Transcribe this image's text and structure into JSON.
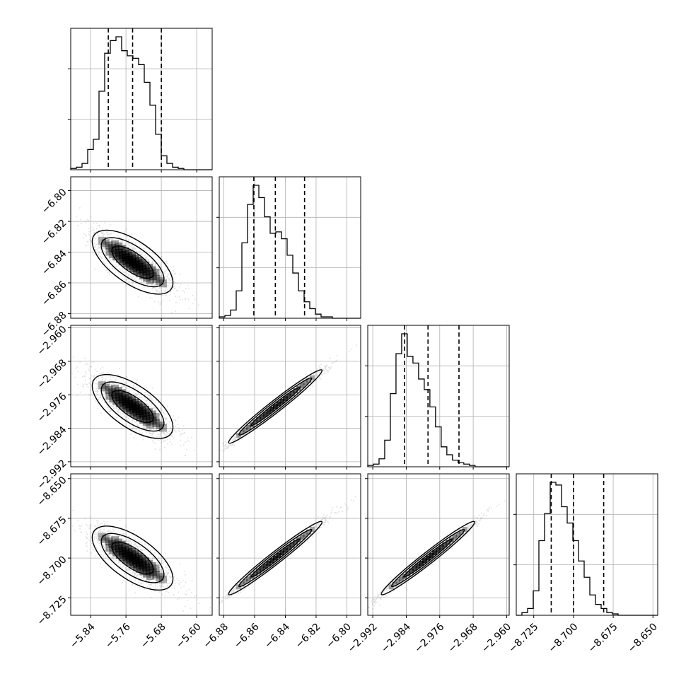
{
  "chart_data": {
    "type": "corner",
    "parameters": [
      {
        "range": [
          -5.885,
          -5.565
        ],
        "ticks": [
          -5.84,
          -5.76,
          -5.68,
          -5.6
        ],
        "tick_labels": [
          "−5.84",
          "−5.76",
          "−5.68",
          "−5.60"
        ],
        "quantiles": [
          -5.8,
          -5.745,
          -5.68
        ],
        "hist_edges_start": -5.885,
        "hist_bin_width": 0.0128,
        "hist_counts": [
          1,
          2,
          5,
          16,
          24,
          62,
          92,
          102,
          105,
          94,
          90,
          88,
          83,
          69,
          51,
          28,
          11,
          5,
          2,
          1,
          0,
          0,
          0,
          0,
          0
        ]
      },
      {
        "range": [
          -6.883,
          -6.791
        ],
        "ticks": [
          -6.88,
          -6.86,
          -6.84,
          -6.82,
          -6.8
        ],
        "tick_labels": [
          "−6.88",
          "−6.86",
          "−6.84",
          "−6.82",
          "−6.80"
        ],
        "quantiles": [
          -6.8605,
          -6.8465,
          -6.8275
        ],
        "hist_edges_start": -6.883,
        "hist_bin_width": 0.00368,
        "hist_counts": [
          1,
          2,
          6,
          20,
          55,
          83,
          97,
          88,
          74,
          62,
          63,
          58,
          46,
          33,
          20,
          12,
          7,
          3,
          1,
          1,
          0,
          0,
          0,
          0,
          0
        ]
      },
      {
        "range": [
          -2.9932,
          -2.9594
        ],
        "ticks": [
          -2.992,
          -2.984,
          -2.976,
          -2.968,
          -2.96
        ],
        "tick_labels": [
          "−2.992",
          "−2.984",
          "−2.976",
          "−2.968",
          "−2.960"
        ],
        "quantiles": [
          -2.9844,
          -2.9788,
          -2.9714
        ],
        "hist_edges_start": -2.9932,
        "hist_bin_width": 0.00135,
        "hist_counts": [
          1,
          2,
          6,
          20,
          55,
          85,
          100,
          83,
          78,
          66,
          58,
          45,
          30,
          15,
          9,
          5,
          3,
          2,
          1,
          0,
          0,
          0,
          0,
          0,
          0
        ]
      },
      {
        "range": [
          -8.736,
          -8.647
        ],
        "ticks": [
          -8.725,
          -8.7,
          -8.675,
          -8.65
        ],
        "tick_labels": [
          "−8.725",
          "−8.700",
          "−8.675",
          "−8.650"
        ],
        "quantiles": [
          -8.714,
          -8.7,
          -8.681
        ],
        "hist_edges_start": -8.736,
        "hist_bin_width": 0.00356,
        "hist_counts": [
          0,
          2,
          5,
          18,
          55,
          75,
          98,
          96,
          80,
          68,
          55,
          40,
          28,
          15,
          8,
          5,
          2,
          1,
          0,
          0,
          0,
          0,
          0,
          0,
          0
        ]
      }
    ],
    "title": "",
    "grid": true
  }
}
